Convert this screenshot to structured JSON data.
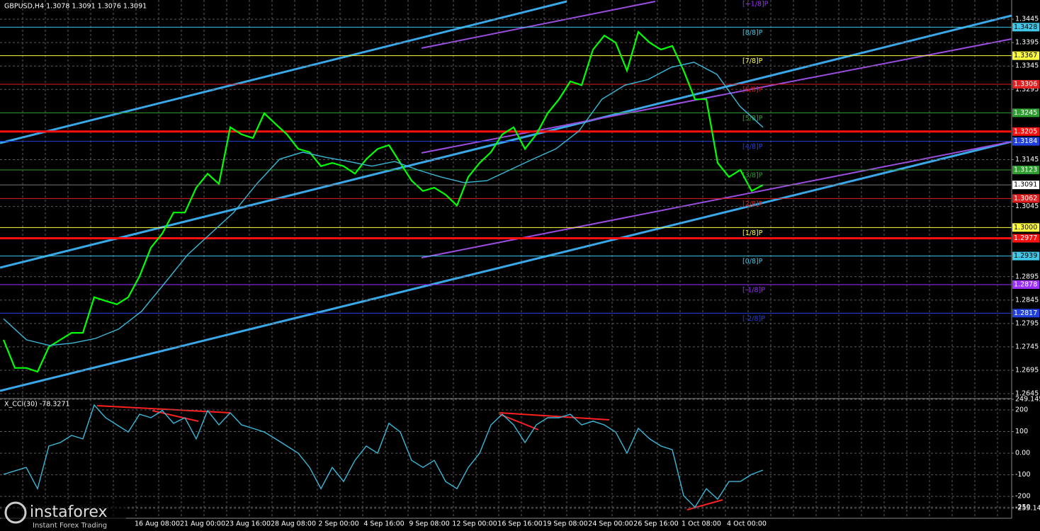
{
  "chart_data": [
    {
      "type": "line",
      "title": "GBPUSD,H4  1.3078 1.3091 1.3076 1.3091",
      "x_labels": [
        "16 Aug 08:00",
        "21 Aug 00:00",
        "23 Aug 16:00",
        "28 Aug 08:00",
        "2 Sep 00:00",
        "4 Sep 16:00",
        "9 Sep 08:00",
        "12 Sep 00:00",
        "16 Sep 16:00",
        "19 Sep 08:00",
        "24 Sep 00:00",
        "26 Sep 16:00",
        "1 Oct 08:00",
        "4 Oct 00:00"
      ],
      "series": [
        {
          "color": "#00ff00",
          "values": [
            1.276,
            1.27,
            1.27,
            1.2692,
            1.2745,
            1.276,
            1.2775,
            1.2775,
            1.2851,
            1.2843,
            1.2836,
            1.2851,
            1.2896,
            1.2957,
            1.2987,
            1.3032,
            1.3032,
            1.3085,
            1.3115,
            1.3093,
            1.3214,
            1.3199,
            1.3191,
            1.3244,
            1.3221,
            1.3199,
            1.3168,
            1.3161,
            1.3131,
            1.3138,
            1.3131,
            1.3115,
            1.3146,
            1.3168,
            1.3176,
            1.3138,
            1.31,
            1.3078,
            1.3085,
            1.307,
            1.3047,
            1.3108,
            1.3138,
            1.3161,
            1.3199,
            1.3214,
            1.3168,
            1.3199,
            1.3244,
            1.3274,
            1.3312,
            1.3304,
            1.338,
            1.341,
            1.3395,
            1.3335,
            1.3418,
            1.3395,
            1.338,
            1.3388,
            1.3335,
            1.3274,
            1.3274,
            1.3138,
            1.3108,
            1.3123,
            1.3078,
            1.3091
          ]
        },
        {
          "color": "#3ab8d8",
          "values": [
            1.2805,
            1.276,
            1.2748,
            1.2753,
            1.2763,
            1.2783,
            1.2821,
            1.2881,
            1.2942,
            1.2987,
            1.3032,
            1.3093,
            1.3146,
            1.3161,
            1.315,
            1.3141,
            1.3131,
            1.3141,
            1.3123,
            1.3108,
            1.3096,
            1.31,
            1.3123,
            1.3146,
            1.3168,
            1.3206,
            1.3274,
            1.3304,
            1.3316,
            1.3342,
            1.3353,
            1.3327,
            1.3259,
            1.3214
          ]
        }
      ],
      "ylim": [
        1.2636,
        1.3486
      ],
      "yticks": [
        1.3445,
        1.3395,
        1.3345,
        1.3295,
        1.3145,
        1.3045,
        1.2895,
        1.2845,
        1.2795,
        1.2745,
        1.2695,
        1.2645
      ],
      "grid": true,
      "levels": [
        {
          "value": 1.3489,
          "label": "[+1/8]P",
          "color": "#9b30ff"
        },
        {
          "value": 1.3428,
          "label": "[8/8]P",
          "color": "#40c8e8"
        },
        {
          "value": 1.3367,
          "label": "[7/8]P",
          "color": "#ffff40"
        },
        {
          "value": 1.3306,
          "label": "[6/8]P",
          "color": "#e02020"
        },
        {
          "value": 1.3245,
          "label": "[5/8]P",
          "color": "#2e9e2e"
        },
        {
          "value": 1.3184,
          "label": "[4/8]P",
          "color": "#2040e0"
        },
        {
          "value": 1.3123,
          "label": "[3/8]P",
          "color": "#2e9e2e"
        },
        {
          "value": 1.3062,
          "label": "[2/8]P",
          "color": "#e02020"
        },
        {
          "value": 1.3,
          "value_label": "1.3000",
          "label": "[1/8]P",
          "color": "#ffff40"
        },
        {
          "value": 1.2939,
          "label": "[0/8]P",
          "color": "#40c8e8"
        },
        {
          "value": 1.2878,
          "label": "[-1/8]P",
          "color": "#9b30ff"
        },
        {
          "value": 1.2817,
          "label": "[-2/8]P",
          "color": "#2040e0"
        }
      ],
      "support_lines": [
        {
          "value": 1.3205,
          "color": "#ff1010"
        },
        {
          "value": 1.2977,
          "color": "#ff1010"
        }
      ],
      "last_price": 1.3091
    },
    {
      "type": "line",
      "title": "X_CCI(30) -78.3271",
      "series": [
        {
          "color": "#3ab8d8",
          "values": [
            -98,
            -82,
            -66,
            -164,
            33,
            49,
            82,
            66,
            223,
            164,
            131,
            98,
            180,
            164,
            197,
            138,
            164,
            66,
            197,
            131,
            187,
            131,
            115,
            98,
            66,
            33,
            0,
            -66,
            -164,
            -66,
            -131,
            -33,
            33,
            0,
            138,
            98,
            -33,
            -66,
            -33,
            -131,
            -164,
            -66,
            0,
            131,
            180,
            131,
            49,
            131,
            164,
            164,
            180,
            131,
            148,
            131,
            98,
            0,
            115,
            66,
            33,
            16,
            -197,
            -250,
            -164,
            -213,
            -131,
            -131,
            -98,
            -78.3271
          ]
        }
      ],
      "ylim": [
        -255.149,
        249.1455
      ],
      "yticks": [
        249.1455,
        200,
        100,
        {
          "value": 0,
          "label": "0.00"
        },
        -100,
        -200,
        -250,
        -255.149
      ],
      "grid": true
    }
  ],
  "watermark": {
    "brand": "instaforex",
    "tagline": "Instant Forex Trading"
  }
}
